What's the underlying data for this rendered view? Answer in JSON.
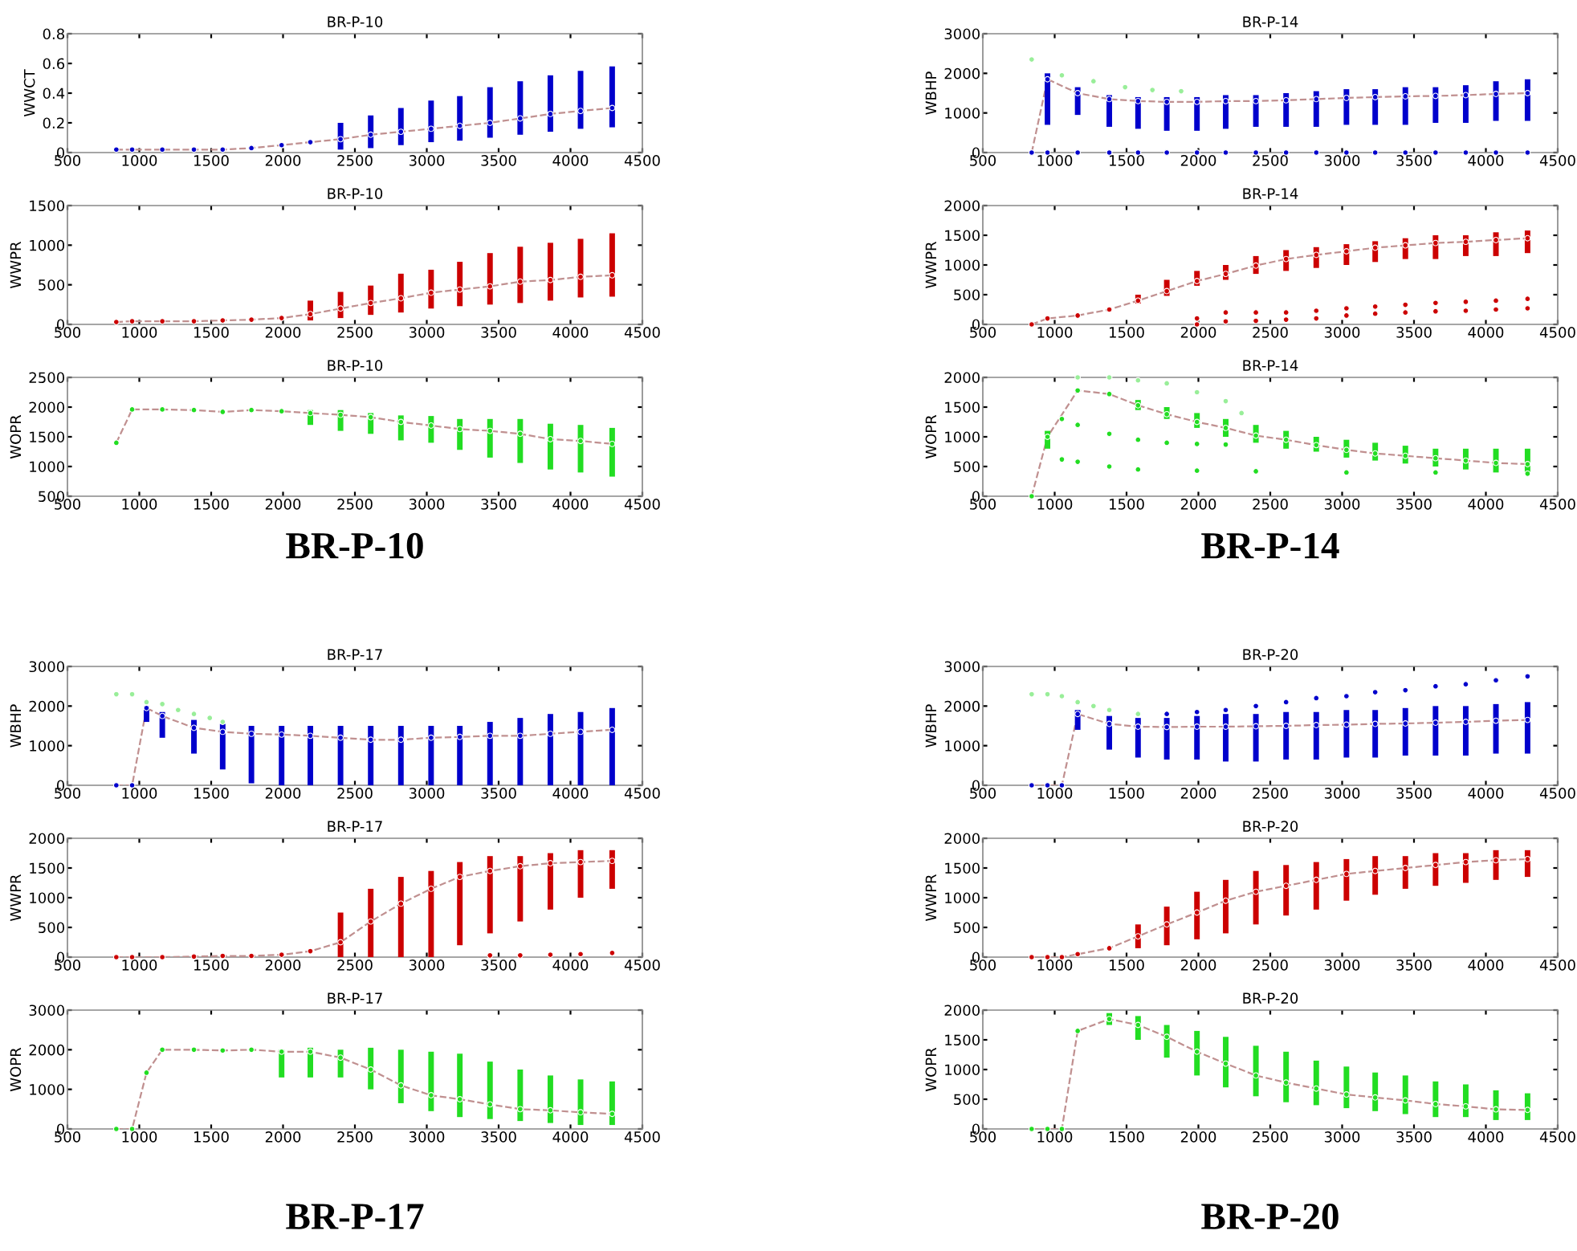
{
  "chart_data": [
    {
      "type": "scatter",
      "title": "BR-P-10",
      "ylabel": "WWCT",
      "xlim": [
        500,
        4500
      ],
      "xticks": [
        500,
        1000,
        1500,
        2000,
        2500,
        3000,
        3500,
        4000,
        4500
      ],
      "ylim": [
        0,
        0.8
      ],
      "yticks": [
        0,
        0.2,
        0.4,
        0.6,
        0.8
      ],
      "x": [
        840,
        950,
        1160,
        1380,
        1580,
        1780,
        1990,
        2190,
        2400,
        2610,
        2820,
        3030,
        3230,
        3440,
        3650,
        3860,
        4070,
        4290
      ],
      "series": [
        {
          "marker": "circle",
          "color": "#0000cc",
          "values": [
            0.02,
            0.02,
            0.02,
            0.02,
            0.02,
            0.03,
            0.05,
            0.07,
            0.09,
            0.12,
            0.14,
            0.16,
            0.18,
            0.2,
            0.23,
            0.26,
            0.28,
            0.3
          ],
          "errors": [
            null,
            null,
            null,
            null,
            null,
            null,
            null,
            null,
            [
              0.02,
              0.2
            ],
            [
              0.03,
              0.25
            ],
            [
              0.05,
              0.3
            ],
            [
              0.07,
              0.35
            ],
            [
              0.08,
              0.38
            ],
            [
              0.1,
              0.44
            ],
            [
              0.12,
              0.48
            ],
            [
              0.14,
              0.52
            ],
            [
              0.16,
              0.55
            ],
            [
              0.17,
              0.58
            ]
          ]
        },
        {
          "type": "line",
          "color": "#c09090",
          "line_style": "dashed",
          "values": [
            0.02,
            0.02,
            0.02,
            0.02,
            0.02,
            0.03,
            0.05,
            0.07,
            0.09,
            0.12,
            0.14,
            0.16,
            0.18,
            0.2,
            0.23,
            0.26,
            0.28,
            0.3
          ]
        }
      ]
    },
    {
      "type": "scatter",
      "title": "BR-P-10",
      "ylabel": "WWPR",
      "xlim": [
        500,
        4500
      ],
      "xticks": [
        500,
        1000,
        1500,
        2000,
        2500,
        3000,
        3500,
        4000,
        4500
      ],
      "ylim": [
        0,
        1500
      ],
      "yticks": [
        0,
        500,
        1000,
        1500
      ],
      "x": [
        840,
        950,
        1160,
        1380,
        1580,
        1780,
        1990,
        2190,
        2400,
        2610,
        2820,
        3030,
        3230,
        3440,
        3650,
        3860,
        4070,
        4290
      ],
      "series": [
        {
          "marker": "circle",
          "color": "#cc0000",
          "values": [
            30,
            40,
            40,
            40,
            50,
            60,
            80,
            130,
            200,
            270,
            330,
            400,
            440,
            480,
            540,
            560,
            600,
            620
          ],
          "errors": [
            null,
            null,
            null,
            null,
            null,
            null,
            null,
            [
              50,
              300
            ],
            [
              80,
              410
            ],
            [
              120,
              490
            ],
            [
              150,
              640
            ],
            [
              200,
              690
            ],
            [
              230,
              790
            ],
            [
              250,
              900
            ],
            [
              270,
              980
            ],
            [
              300,
              1030
            ],
            [
              340,
              1080
            ],
            [
              350,
              1150
            ]
          ]
        },
        {
          "type": "line",
          "color": "#c09090",
          "line_style": "dashed",
          "values": [
            30,
            40,
            40,
            40,
            50,
            60,
            80,
            130,
            200,
            270,
            330,
            400,
            440,
            480,
            540,
            560,
            600,
            620
          ]
        }
      ]
    },
    {
      "type": "scatter",
      "title": "BR-P-10",
      "ylabel": "WOPR",
      "xlim": [
        500,
        4500
      ],
      "xticks": [
        500,
        1000,
        1500,
        2000,
        2500,
        3000,
        3500,
        4000,
        4500
      ],
      "ylim": [
        500,
        2500
      ],
      "yticks": [
        500,
        1000,
        1500,
        2000,
        2500
      ],
      "annotations": [
        "BR-P-10"
      ],
      "x": [
        840,
        950,
        1160,
        1380,
        1580,
        1780,
        1990,
        2190,
        2400,
        2610,
        2820,
        3030,
        3230,
        3440,
        3650,
        3860,
        4070,
        4290
      ],
      "series": [
        {
          "marker": "circle",
          "color": "#22dd22",
          "values": [
            1400,
            1960,
            1960,
            1950,
            1920,
            1950,
            1930,
            1900,
            1870,
            1830,
            1750,
            1690,
            1630,
            1600,
            1550,
            1460,
            1430,
            1380
          ],
          "errors": [
            null,
            null,
            null,
            null,
            null,
            null,
            null,
            [
              1700,
              1950
            ],
            [
              1600,
              1950
            ],
            [
              1550,
              1900
            ],
            [
              1440,
              1860
            ],
            [
              1400,
              1850
            ],
            [
              1280,
              1800
            ],
            [
              1150,
              1800
            ],
            [
              1060,
              1800
            ],
            [
              950,
              1720
            ],
            [
              900,
              1700
            ],
            [
              830,
              1650
            ]
          ]
        },
        {
          "type": "line",
          "color": "#c09090",
          "line_style": "dashed",
          "values": [
            1400,
            1960,
            1960,
            1950,
            1920,
            1950,
            1930,
            1900,
            1870,
            1830,
            1750,
            1690,
            1630,
            1600,
            1550,
            1460,
            1430,
            1380
          ]
        }
      ]
    },
    {
      "type": "scatter",
      "title": "BR-P-14",
      "ylabel": "WBHP",
      "xlim": [
        500,
        4500
      ],
      "xticks": [
        500,
        1000,
        1500,
        2000,
        2500,
        3000,
        3500,
        4000,
        4500
      ],
      "ylim": [
        0,
        3000
      ],
      "yticks": [
        0,
        1000,
        2000,
        3000
      ],
      "x": [
        840,
        950,
        1160,
        1380,
        1580,
        1780,
        1990,
        2190,
        2400,
        2610,
        2820,
        3030,
        3230,
        3440,
        3650,
        3860,
        4070,
        4290
      ],
      "series": [
        {
          "marker": "circle",
          "color": "#0000cc",
          "values": [
            0,
            1850,
            1500,
            1350,
            1300,
            1280,
            1280,
            1300,
            1300,
            1320,
            1350,
            1380,
            1400,
            1420,
            1430,
            1450,
            1480,
            1500
          ],
          "errors": [
            null,
            [
              700,
              2000
            ],
            [
              950,
              1650
            ],
            [
              650,
              1450
            ],
            [
              600,
              1400
            ],
            [
              550,
              1400
            ],
            [
              550,
              1400
            ],
            [
              600,
              1450
            ],
            [
              650,
              1450
            ],
            [
              650,
              1500
            ],
            [
              650,
              1550
            ],
            [
              700,
              1600
            ],
            [
              700,
              1600
            ],
            [
              700,
              1650
            ],
            [
              750,
              1650
            ],
            [
              750,
              1700
            ],
            [
              800,
              1800
            ],
            [
              800,
              1850
            ]
          ]
        },
        {
          "marker": "circle",
          "color": "#0000cc",
          "x": [
            950,
            1160,
            1380,
            1580,
            1780,
            1990,
            2190,
            2400,
            2610,
            2820,
            3030,
            3230,
            3440,
            3650,
            3860,
            4070,
            4290
          ],
          "values": [
            0,
            0,
            0,
            0,
            0,
            0,
            0,
            0,
            0,
            0,
            0,
            0,
            0,
            0,
            0,
            0,
            0
          ]
        },
        {
          "marker": "circle",
          "color": "#99ee99",
          "x": [
            840,
            1050,
            1270,
            1490,
            1680,
            1880
          ],
          "values": [
            2350,
            1950,
            1800,
            1650,
            1580,
            1550
          ]
        },
        {
          "type": "line",
          "color": "#c09090",
          "line_style": "dashed",
          "values": [
            0,
            1850,
            1500,
            1350,
            1300,
            1280,
            1280,
            1300,
            1300,
            1320,
            1350,
            1380,
            1400,
            1420,
            1430,
            1450,
            1480,
            1500
          ]
        }
      ]
    },
    {
      "type": "scatter",
      "title": "BR-P-14",
      "ylabel": "WWPR",
      "xlim": [
        500,
        4500
      ],
      "xticks": [
        500,
        1000,
        1500,
        2000,
        2500,
        3000,
        3500,
        4000,
        4500
      ],
      "ylim": [
        0,
        2000
      ],
      "yticks": [
        0,
        500,
        1000,
        1500,
        2000
      ],
      "x": [
        840,
        950,
        1160,
        1380,
        1580,
        1780,
        1990,
        2190,
        2400,
        2610,
        2820,
        3030,
        3230,
        3440,
        3650,
        3860,
        4070,
        4290
      ],
      "series": [
        {
          "marker": "circle",
          "color": "#cc0000",
          "values": [
            0,
            100,
            150,
            250,
            400,
            560,
            730,
            850,
            990,
            1100,
            1170,
            1230,
            1290,
            1330,
            1370,
            1390,
            1420,
            1450
          ],
          "errors": [
            null,
            null,
            null,
            null,
            [
              350,
              500
            ],
            [
              480,
              750
            ],
            [
              650,
              900
            ],
            [
              750,
              1000
            ],
            [
              850,
              1150
            ],
            [
              900,
              1250
            ],
            [
              950,
              1300
            ],
            [
              1000,
              1350
            ],
            [
              1050,
              1400
            ],
            [
              1100,
              1450
            ],
            [
              1100,
              1500
            ],
            [
              1150,
              1500
            ],
            [
              1150,
              1550
            ],
            [
              1200,
              1580
            ]
          ]
        },
        {
          "marker": "circle",
          "color": "#cc0000",
          "x": [
            1990,
            2190,
            2400,
            2610,
            2820,
            3030,
            3230,
            3440,
            3650,
            3860,
            4070,
            4290,
            1990,
            2190,
            2400,
            2610,
            2820,
            3030,
            3230,
            3440,
            3650,
            3860,
            4070,
            4290
          ],
          "values": [
            100,
            200,
            200,
            200,
            230,
            270,
            300,
            330,
            360,
            380,
            400,
            430,
            0,
            50,
            60,
            80,
            100,
            150,
            180,
            200,
            220,
            230,
            250,
            270
          ]
        },
        {
          "type": "line",
          "color": "#c09090",
          "line_style": "dashed",
          "values": [
            0,
            100,
            150,
            250,
            400,
            560,
            730,
            850,
            990,
            1100,
            1170,
            1230,
            1290,
            1330,
            1370,
            1390,
            1420,
            1450
          ]
        }
      ]
    },
    {
      "type": "scatter",
      "title": "BR-P-14",
      "ylabel": "WOPR",
      "xlim": [
        500,
        4500
      ],
      "xticks": [
        500,
        1000,
        1500,
        2000,
        2500,
        3000,
        3500,
        4000,
        4500
      ],
      "ylim": [
        0,
        2000
      ],
      "yticks": [
        0,
        500,
        1000,
        1500,
        2000
      ],
      "annotations": [
        "BR-P-14"
      ],
      "x": [
        840,
        950,
        1160,
        1380,
        1580,
        1780,
        1990,
        2190,
        2400,
        2610,
        2820,
        3030,
        3230,
        3440,
        3650,
        3860,
        4070,
        4290
      ],
      "series": [
        {
          "marker": "circle",
          "color": "#22dd22",
          "values": [
            0,
            1000,
            1780,
            1720,
            1530,
            1380,
            1250,
            1150,
            1020,
            950,
            860,
            780,
            720,
            680,
            640,
            600,
            560,
            540
          ],
          "errors": [
            null,
            [
              800,
              1100
            ],
            null,
            null,
            [
              1450,
              1620
            ],
            [
              1300,
              1500
            ],
            [
              1150,
              1400
            ],
            [
              1000,
              1300
            ],
            [
              900,
              1200
            ],
            [
              800,
              1100
            ],
            [
              750,
              1000
            ],
            [
              650,
              950
            ],
            [
              600,
              900
            ],
            [
              550,
              850
            ],
            [
              500,
              800
            ],
            [
              450,
              800
            ],
            [
              400,
              800
            ],
            [
              380,
              800
            ]
          ]
        },
        {
          "marker": "circle",
          "color": "#22dd22",
          "x": [
            1050,
            1160,
            1380,
            1580,
            1780,
            1990,
            2190,
            1050,
            1160,
            1380,
            1580,
            1990,
            2400,
            3030,
            3650,
            4290
          ],
          "values": [
            1300,
            1200,
            1050,
            950,
            900,
            880,
            870,
            620,
            580,
            500,
            450,
            430,
            420,
            400,
            400,
            380
          ]
        },
        {
          "marker": "circle",
          "color": "#99ee99",
          "x": [
            1160,
            1380,
            1580,
            1780,
            1990,
            2190,
            2300
          ],
          "values": [
            2000,
            2000,
            1950,
            1900,
            1750,
            1600,
            1400
          ]
        },
        {
          "type": "line",
          "color": "#c09090",
          "line_style": "dashed",
          "values": [
            0,
            1000,
            1780,
            1720,
            1530,
            1380,
            1250,
            1150,
            1020,
            950,
            860,
            780,
            720,
            680,
            640,
            600,
            560,
            540
          ]
        }
      ]
    },
    {
      "type": "scatter",
      "title": "BR-P-17",
      "ylabel": "WBHP",
      "xlim": [
        500,
        4500
      ],
      "xticks": [
        500,
        1000,
        1500,
        2000,
        2500,
        3000,
        3500,
        4000,
        4500
      ],
      "ylim": [
        0,
        3000
      ],
      "yticks": [
        0,
        1000,
        2000,
        3000
      ],
      "x": [
        840,
        950,
        1050,
        1160,
        1380,
        1580,
        1780,
        1990,
        2190,
        2400,
        2610,
        2820,
        3030,
        3230,
        3440,
        3650,
        3860,
        4070,
        4290
      ],
      "series": [
        {
          "marker": "circle",
          "color": "#0000cc",
          "values": [
            0,
            0,
            1950,
            1750,
            1450,
            1350,
            1300,
            1280,
            1250,
            1200,
            1150,
            1150,
            1200,
            1220,
            1250,
            1250,
            1300,
            1350,
            1400
          ],
          "errors": [
            null,
            null,
            [
              1600,
              2000
            ],
            [
              1200,
              1850
            ],
            [
              800,
              1650
            ],
            [
              400,
              1550
            ],
            [
              50,
              1500
            ],
            [
              0,
              1500
            ],
            [
              0,
              1500
            ],
            [
              0,
              1500
            ],
            [
              0,
              1500
            ],
            [
              0,
              1500
            ],
            [
              0,
              1500
            ],
            [
              0,
              1500
            ],
            [
              0,
              1600
            ],
            [
              0,
              1700
            ],
            [
              0,
              1800
            ],
            [
              0,
              1850
            ],
            [
              0,
              1950
            ]
          ]
        },
        {
          "marker": "circle",
          "color": "#99ee99",
          "x": [
            840,
            950,
            1050,
            1160,
            1270,
            1380,
            1490,
            1580
          ],
          "values": [
            2300,
            2300,
            2100,
            2050,
            1900,
            1800,
            1700,
            1600
          ]
        },
        {
          "type": "line",
          "color": "#c09090",
          "line_style": "dashed",
          "values": [
            0,
            0,
            1950,
            1750,
            1450,
            1350,
            1300,
            1280,
            1250,
            1200,
            1150,
            1150,
            1200,
            1220,
            1250,
            1250,
            1300,
            1350,
            1400
          ]
        }
      ]
    },
    {
      "type": "scatter",
      "title": "BR-P-17",
      "ylabel": "WWPR",
      "xlim": [
        500,
        4500
      ],
      "xticks": [
        500,
        1000,
        1500,
        2000,
        2500,
        3000,
        3500,
        4000,
        4500
      ],
      "ylim": [
        0,
        2000
      ],
      "yticks": [
        0,
        500,
        1000,
        1500,
        2000
      ],
      "x": [
        840,
        950,
        1160,
        1380,
        1580,
        1780,
        1990,
        2190,
        2400,
        2610,
        2820,
        3030,
        3230,
        3440,
        3650,
        3860,
        4070,
        4290
      ],
      "series": [
        {
          "marker": "circle",
          "color": "#cc0000",
          "values": [
            0,
            0,
            0,
            10,
            20,
            20,
            40,
            100,
            250,
            600,
            900,
            1150,
            1350,
            1450,
            1530,
            1580,
            1600,
            1620
          ],
          "errors": [
            null,
            null,
            null,
            null,
            null,
            null,
            null,
            null,
            [
              0,
              750
            ],
            [
              0,
              1150
            ],
            [
              0,
              1350
            ],
            [
              0,
              1450
            ],
            [
              200,
              1600
            ],
            [
              400,
              1700
            ],
            [
              600,
              1700
            ],
            [
              800,
              1750
            ],
            [
              1000,
              1800
            ],
            [
              1150,
              1800
            ]
          ]
        },
        {
          "marker": "circle",
          "color": "#cc0000",
          "x": [
            3440,
            3650,
            3860,
            4070,
            4290
          ],
          "values": [
            30,
            30,
            40,
            50,
            70
          ]
        },
        {
          "type": "line",
          "color": "#c09090",
          "line_style": "dashed",
          "values": [
            0,
            0,
            0,
            10,
            20,
            20,
            40,
            100,
            250,
            600,
            900,
            1150,
            1350,
            1450,
            1530,
            1580,
            1600,
            1620
          ]
        }
      ]
    },
    {
      "type": "scatter",
      "title": "BR-P-17",
      "ylabel": "WOPR",
      "xlim": [
        500,
        4500
      ],
      "xticks": [
        500,
        1000,
        1500,
        2000,
        2500,
        3000,
        3500,
        4000,
        4500
      ],
      "ylim": [
        0,
        3000
      ],
      "yticks": [
        0,
        1000,
        2000,
        3000
      ],
      "annotations": [
        "BR-P-17"
      ],
      "x": [
        840,
        950,
        1050,
        1160,
        1380,
        1580,
        1780,
        1990,
        2190,
        2400,
        2610,
        2820,
        3030,
        3230,
        3440,
        3650,
        3860,
        4070,
        4290
      ],
      "series": [
        {
          "marker": "circle",
          "color": "#22dd22",
          "values": [
            0,
            0,
            1420,
            2000,
            2000,
            1980,
            2000,
            1950,
            1950,
            1800,
            1500,
            1100,
            850,
            750,
            620,
            500,
            470,
            420,
            380
          ],
          "errors": [
            null,
            null,
            null,
            null,
            null,
            null,
            null,
            [
              1300,
              2000
            ],
            [
              1300,
              2050
            ],
            [
              1300,
              2000
            ],
            [
              1000,
              2050
            ],
            [
              650,
              2000
            ],
            [
              450,
              1950
            ],
            [
              300,
              1900
            ],
            [
              250,
              1700
            ],
            [
              200,
              1500
            ],
            [
              150,
              1350
            ],
            [
              100,
              1250
            ],
            [
              100,
              1200
            ]
          ]
        },
        {
          "type": "line",
          "color": "#c09090",
          "line_style": "dashed",
          "values": [
            0,
            0,
            1420,
            2000,
            2000,
            1980,
            2000,
            1950,
            1950,
            1800,
            1500,
            1100,
            850,
            750,
            620,
            500,
            470,
            420,
            380
          ]
        }
      ]
    },
    {
      "type": "scatter",
      "title": "BR-P-20",
      "ylabel": "WBHP",
      "xlim": [
        500,
        4500
      ],
      "xticks": [
        500,
        1000,
        1500,
        2000,
        2500,
        3000,
        3500,
        4000,
        4500
      ],
      "ylim": [
        0,
        3000
      ],
      "yticks": [
        0,
        1000,
        2000,
        3000
      ],
      "x": [
        840,
        950,
        1050,
        1160,
        1380,
        1580,
        1780,
        1990,
        2190,
        2400,
        2610,
        2820,
        3030,
        3230,
        3440,
        3650,
        3860,
        4070,
        4290
      ],
      "series": [
        {
          "marker": "circle",
          "color": "#0000cc",
          "values": [
            0,
            0,
            0,
            1800,
            1550,
            1480,
            1470,
            1480,
            1480,
            1490,
            1500,
            1520,
            1530,
            1550,
            1560,
            1580,
            1600,
            1630,
            1650
          ],
          "errors": [
            null,
            null,
            null,
            [
              1400,
              1900
            ],
            [
              900,
              1750
            ],
            [
              700,
              1700
            ],
            [
              650,
              1700
            ],
            [
              650,
              1750
            ],
            [
              600,
              1800
            ],
            [
              600,
              1800
            ],
            [
              650,
              1850
            ],
            [
              650,
              1850
            ],
            [
              700,
              1900
            ],
            [
              700,
              1900
            ],
            [
              750,
              1950
            ],
            [
              750,
              2000
            ],
            [
              750,
              2000
            ],
            [
              800,
              2050
            ],
            [
              800,
              2100
            ]
          ]
        },
        {
          "marker": "circle",
          "color": "#0000cc",
          "x": [
            1780,
            1990,
            2190,
            2400,
            2610,
            2820,
            3030,
            3230,
            3440,
            3650,
            3860,
            4070,
            4290
          ],
          "values": [
            1800,
            1850,
            1900,
            2000,
            2100,
            2200,
            2250,
            2350,
            2400,
            2500,
            2550,
            2650,
            2750
          ]
        },
        {
          "marker": "circle",
          "color": "#99ee99",
          "x": [
            840,
            950,
            1050,
            1160,
            1270,
            1380,
            1580
          ],
          "values": [
            2300,
            2300,
            2250,
            2100,
            2000,
            1900,
            1800
          ]
        },
        {
          "type": "line",
          "color": "#c09090",
          "line_style": "dashed",
          "values": [
            0,
            0,
            0,
            1800,
            1550,
            1480,
            1470,
            1480,
            1480,
            1490,
            1500,
            1520,
            1530,
            1550,
            1560,
            1580,
            1600,
            1630,
            1650
          ]
        }
      ]
    },
    {
      "type": "scatter",
      "title": "BR-P-20",
      "ylabel": "WWPR",
      "xlim": [
        500,
        4500
      ],
      "xticks": [
        500,
        1000,
        1500,
        2000,
        2500,
        3000,
        3500,
        4000,
        4500
      ],
      "ylim": [
        0,
        2000
      ],
      "yticks": [
        0,
        500,
        1000,
        1500,
        2000
      ],
      "x": [
        840,
        950,
        1050,
        1160,
        1380,
        1580,
        1780,
        1990,
        2190,
        2400,
        2610,
        2820,
        3030,
        3230,
        3440,
        3650,
        3860,
        4070,
        4290
      ],
      "series": [
        {
          "marker": "circle",
          "color": "#cc0000",
          "values": [
            0,
            0,
            0,
            50,
            150,
            350,
            550,
            750,
            950,
            1100,
            1200,
            1300,
            1400,
            1450,
            1500,
            1550,
            1600,
            1630,
            1650
          ],
          "errors": [
            null,
            null,
            null,
            null,
            null,
            [
              150,
              550
            ],
            [
              200,
              850
            ],
            [
              300,
              1100
            ],
            [
              400,
              1300
            ],
            [
              550,
              1450
            ],
            [
              700,
              1550
            ],
            [
              800,
              1600
            ],
            [
              950,
              1650
            ],
            [
              1050,
              1700
            ],
            [
              1150,
              1700
            ],
            [
              1200,
              1750
            ],
            [
              1250,
              1750
            ],
            [
              1300,
              1800
            ],
            [
              1350,
              1800
            ]
          ]
        },
        {
          "type": "line",
          "color": "#c09090",
          "line_style": "dashed",
          "values": [
            0,
            0,
            0,
            50,
            150,
            350,
            550,
            750,
            950,
            1100,
            1200,
            1300,
            1400,
            1450,
            1500,
            1550,
            1600,
            1630,
            1650
          ]
        }
      ]
    },
    {
      "type": "scatter",
      "title": "BR-P-20",
      "ylabel": "WOPR",
      "xlim": [
        500,
        4500
      ],
      "xticks": [
        500,
        1000,
        1500,
        2000,
        2500,
        3000,
        3500,
        4000,
        4500
      ],
      "ylim": [
        0,
        2000
      ],
      "yticks": [
        0,
        500,
        1000,
        1500,
        2000
      ],
      "annotations": [
        "BR-P-20"
      ],
      "x": [
        840,
        950,
        1050,
        1160,
        1380,
        1580,
        1780,
        1990,
        2190,
        2400,
        2610,
        2820,
        3030,
        3230,
        3440,
        3650,
        3860,
        4070,
        4290
      ],
      "series": [
        {
          "marker": "circle",
          "color": "#22dd22",
          "values": [
            0,
            0,
            0,
            1650,
            1850,
            1750,
            1550,
            1300,
            1100,
            900,
            780,
            680,
            580,
            530,
            480,
            420,
            380,
            330,
            320
          ],
          "errors": [
            null,
            null,
            null,
            null,
            [
              1750,
              1950
            ],
            [
              1500,
              1900
            ],
            [
              1200,
              1750
            ],
            [
              900,
              1650
            ],
            [
              700,
              1550
            ],
            [
              550,
              1400
            ],
            [
              450,
              1300
            ],
            [
              400,
              1150
            ],
            [
              350,
              1050
            ],
            [
              300,
              950
            ],
            [
              250,
              900
            ],
            [
              200,
              800
            ],
            [
              200,
              750
            ],
            [
              150,
              650
            ],
            [
              150,
              600
            ]
          ]
        },
        {
          "type": "line",
          "color": "#c09090",
          "line_style": "dashed",
          "values": [
            0,
            0,
            0,
            1650,
            1850,
            1750,
            1550,
            1300,
            1100,
            900,
            780,
            680,
            580,
            530,
            480,
            420,
            380,
            330,
            320
          ]
        }
      ]
    }
  ]
}
